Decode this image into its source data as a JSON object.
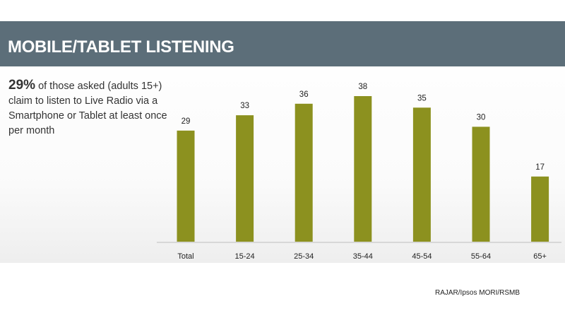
{
  "header": {
    "title": "MOBILE/TABLET LISTENING"
  },
  "summary": {
    "highlight": "29%",
    "text": "of those asked (adults 15+) claim to listen to Live Radio via a Smartphone or Tablet at least once per month"
  },
  "source": "RAJAR/Ipsos MORI/RSMB",
  "colors": {
    "header_band": "#5c6e79",
    "bar": "#8c911f"
  },
  "chart_data": {
    "type": "bar",
    "categories": [
      "Total",
      "15-24",
      "25-34",
      "35-44",
      "45-54",
      "55-64",
      "65+"
    ],
    "values": [
      29,
      33,
      36,
      38,
      35,
      30,
      17
    ],
    "value_labels": [
      "29",
      "33",
      "36",
      "38",
      "35",
      "30",
      "17"
    ],
    "title": "",
    "xlabel": "",
    "ylabel": "",
    "ylim": [
      0,
      40
    ],
    "grid": false,
    "legend": "none"
  }
}
